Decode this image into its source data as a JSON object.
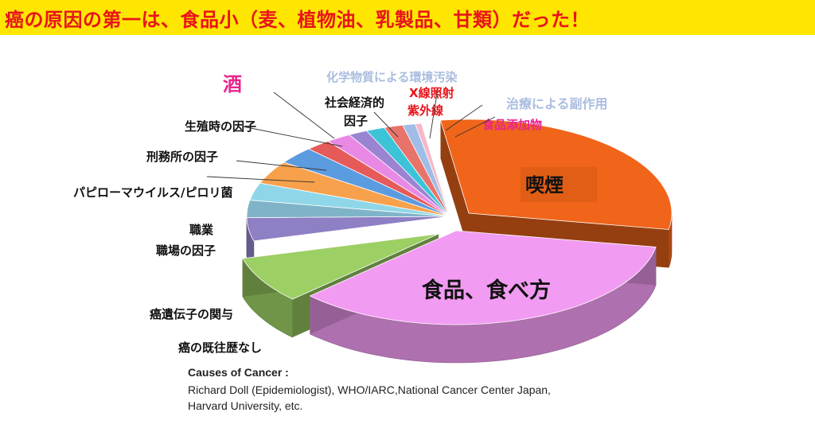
{
  "header": {
    "title": "癌の原因の第一は、食品小（麦、植物油、乳製品、甘類）だった！"
  },
  "chart_data": {
    "type": "pie",
    "title": "",
    "categories": [
      "喫煙",
      "食品、食べ方",
      "癌の既往歴なし",
      "癌遺伝子の関与",
      "職場の因子",
      "職業",
      "パピローマウイルス/ピロリ菌",
      "刑務所の因子",
      "生殖時の因子",
      "酒",
      "社会経済的因子",
      "化学物質による環境汚染",
      "X線照射 紫外線",
      "治療による副作用",
      "食品添加物"
    ],
    "values": [
      30,
      35,
      8,
      4,
      3,
      3,
      4,
      3,
      2,
      2,
      1.5,
      1.5,
      1.5,
      1,
      0.5
    ],
    "colors": [
      "#f0651a",
      "#f29bf2",
      "#9ccf64",
      "#8f7fc4",
      "#7fb4c8",
      "#8fd6e8",
      "#f7a14c",
      "#5b9be0",
      "#e65a5a",
      "#e989e6",
      "#9a84d2",
      "#3cc3d8",
      "#e8736a",
      "#9fbde6",
      "#f6b8c8"
    ],
    "annotations": [
      {
        "text": "喫煙",
        "color": "#111111"
      },
      {
        "text": "食品、食べ方",
        "color": "#111111"
      },
      {
        "text": "癌の既往歴なし",
        "color": "#111111"
      },
      {
        "text": "癌遺伝子の関与",
        "color": "#111111"
      },
      {
        "text": "職場の因子",
        "color": "#111111"
      },
      {
        "text": "職業",
        "color": "#111111"
      },
      {
        "text": "パピローマウイルス/ピロリ菌",
        "color": "#111111"
      },
      {
        "text": "刑務所の因子",
        "color": "#111111"
      },
      {
        "text": "生殖時の因子",
        "color": "#111111"
      },
      {
        "text": "酒",
        "color": "#e8258f"
      },
      {
        "text": "社会経済的",
        "color": "#111111"
      },
      {
        "text": "因子",
        "color": "#111111"
      },
      {
        "text": "化学物質による環境汚染",
        "color": "#a9bde0"
      },
      {
        "text": "X線照射",
        "color": "#e8141b"
      },
      {
        "text": "紫外線",
        "color": "#e8141b"
      },
      {
        "text": "治療による副作用",
        "color": "#a9bde0"
      },
      {
        "text": "食品添加物",
        "color": "#e8258f"
      }
    ]
  },
  "source": {
    "heading": "Causes of Cancer :",
    "line1": "Richard Doll (Epidemiologist), WHO/IARC,National Cancer Center Japan,",
    "line2": "Harvard University, etc."
  }
}
